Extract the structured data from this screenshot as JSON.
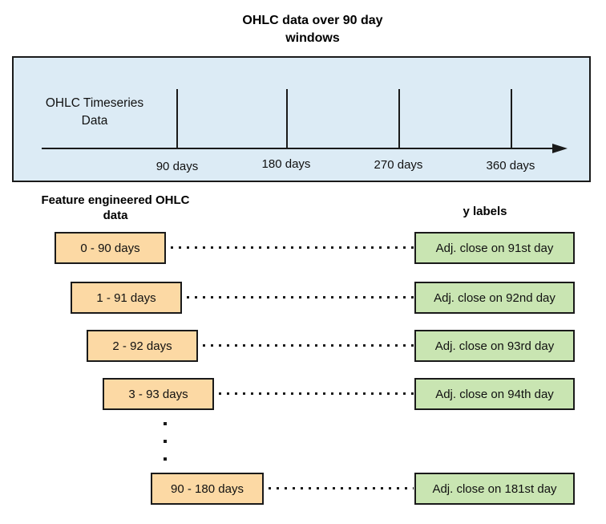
{
  "colors": {
    "panel-fill": "#dcebf5",
    "feature-fill": "#fcd9a4",
    "label-fill": "#c9e5b2",
    "stroke": "#1a1a1a"
  },
  "title": {
    "line1": "OHLC data over 90 day",
    "line2": "windows"
  },
  "timeline": {
    "panel_label_line1": "OHLC Timeseries",
    "panel_label_line2": "Data",
    "tick_labels": [
      "90 days",
      "180 days",
      "270 days",
      "360 days"
    ]
  },
  "sections": {
    "features_header_line1": "Feature engineered OHLC",
    "features_header_line2": "data",
    "ylabels_header": "y labels"
  },
  "rows": [
    {
      "feature": "0 - 90 days",
      "label": "Adj. close on 91st day"
    },
    {
      "feature": "1 - 91 days",
      "label": "Adj. close on 92nd day"
    },
    {
      "feature": "2 - 92 days",
      "label": "Adj. close on 93rd day"
    },
    {
      "feature": "3 - 93 days",
      "label": "Adj. close on 94th day"
    },
    {
      "feature": "90 - 180 days",
      "label": "Adj. close on 181st day"
    }
  ]
}
